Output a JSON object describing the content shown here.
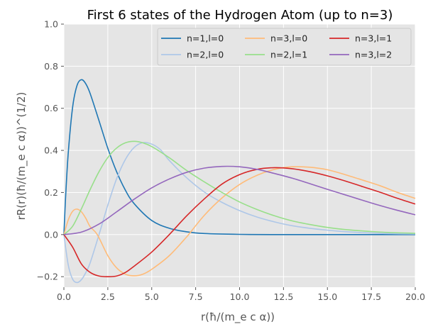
{
  "chart_data": {
    "type": "line",
    "title": "First 6 states of the Hydrogen Atom (up to n=3)",
    "xlabel": "r(ħ/(m_e c α))",
    "ylabel": "rR(r)(ħ/(m_e c α))^(1/2)",
    "xlim": [
      0,
      20
    ],
    "ylim": [
      -0.25,
      1.0
    ],
    "xticks": [
      0.0,
      2.5,
      5.0,
      7.5,
      10.0,
      12.5,
      15.0,
      17.5,
      20.0
    ],
    "xtick_labels": [
      "0.0",
      "2.5",
      "5.0",
      "7.5",
      "10.0",
      "12.5",
      "15.0",
      "17.5",
      "20.0"
    ],
    "yticks": [
      -0.2,
      0.0,
      0.2,
      0.4,
      0.6,
      0.8,
      1.0
    ],
    "ytick_labels": [
      "−0.2",
      "0.0",
      "0.2",
      "0.4",
      "0.6",
      "0.8",
      "1.0"
    ],
    "grid": true,
    "legend_placement": "top-right",
    "legend_columns": 3,
    "series": [
      {
        "name": "n=1,l=0",
        "color": "#1f77b4",
        "x": [
          0,
          0.1,
          0.25,
          0.5,
          0.75,
          1.0,
          1.25,
          1.5,
          2.0,
          2.5,
          3.0,
          3.5,
          4.0,
          5.0,
          6.0,
          7.0,
          8.0,
          10.0,
          12.0,
          15.0,
          20.0
        ],
        "y": [
          0.0,
          0.181,
          0.389,
          0.607,
          0.709,
          0.736,
          0.716,
          0.669,
          0.541,
          0.41,
          0.299,
          0.211,
          0.147,
          0.067,
          0.03,
          0.013,
          0.005,
          0.001,
          0.0,
          0.0,
          0.0
        ]
      },
      {
        "name": "n=2,l=0",
        "color": "#aec7e8",
        "x": [
          0,
          0.25,
          0.5,
          0.75,
          1.0,
          1.25,
          1.5,
          2.0,
          2.5,
          3.0,
          3.5,
          4.0,
          4.5,
          5.0,
          5.5,
          6.0,
          7.0,
          8.0,
          9.0,
          10.0,
          11.0,
          12.0,
          13.0,
          14.0,
          15.0,
          16.0,
          18.0,
          20.0
        ],
        "y": [
          0.0,
          -0.145,
          -0.212,
          -0.228,
          -0.214,
          -0.18,
          -0.133,
          -0.0,
          0.14,
          0.265,
          0.357,
          0.414,
          0.437,
          0.43,
          0.403,
          0.352,
          0.269,
          0.202,
          0.153,
          0.114,
          0.083,
          0.06,
          0.042,
          0.03,
          0.021,
          0.014,
          0.006,
          0.003
        ]
      },
      {
        "name": "n=3,l=0",
        "color": "#ffbb78",
        "x": [
          0,
          0.25,
          0.5,
          0.75,
          1.0,
          1.25,
          1.5,
          1.9,
          2.5,
          3.0,
          3.5,
          4.0,
          4.5,
          5.0,
          6.0,
          7.0,
          7.1,
          8.0,
          9.0,
          10.0,
          11.0,
          12.0,
          13.0,
          14.0,
          15.0,
          16.0,
          17.0,
          18.0,
          19.0,
          20.0
        ],
        "y": [
          0.0,
          0.07,
          0.111,
          0.121,
          0.108,
          0.077,
          0.037,
          -0.0,
          -0.1,
          -0.158,
          -0.188,
          -0.196,
          -0.188,
          -0.165,
          -0.1,
          -0.01,
          0.0,
          0.092,
          0.174,
          0.238,
          0.282,
          0.31,
          0.322,
          0.32,
          0.308,
          0.285,
          0.259,
          0.232,
          0.2,
          0.172
        ]
      },
      {
        "name": "n=2,l=1",
        "color": "#98df8a",
        "x": [
          0,
          0.5,
          1.0,
          1.5,
          2.0,
          2.5,
          3.0,
          3.5,
          4.0,
          4.5,
          5.0,
          6.0,
          7.0,
          8.0,
          9.0,
          10.0,
          11.0,
          12.0,
          13.0,
          14.0,
          15.0,
          16.0,
          18.0,
          20.0
        ],
        "y": [
          0.0,
          0.04,
          0.123,
          0.215,
          0.299,
          0.366,
          0.411,
          0.436,
          0.443,
          0.436,
          0.418,
          0.365,
          0.304,
          0.25,
          0.2,
          0.155,
          0.119,
          0.089,
          0.065,
          0.048,
          0.034,
          0.024,
          0.012,
          0.006
        ]
      },
      {
        "name": "n=3,l=1",
        "color": "#d62728",
        "x": [
          0,
          0.5,
          1.0,
          1.5,
          2.0,
          2.5,
          3.0,
          3.5,
          4.0,
          5.0,
          6.0,
          7.0,
          8.0,
          9.0,
          10.0,
          11.0,
          12.0,
          13.0,
          14.0,
          15.0,
          16.0,
          17.0,
          18.0,
          19.0,
          20.0
        ],
        "y": [
          0.0,
          -0.06,
          -0.14,
          -0.18,
          -0.197,
          -0.2,
          -0.197,
          -0.18,
          -0.15,
          -0.083,
          -0.0,
          0.09,
          0.17,
          0.24,
          0.285,
          0.31,
          0.318,
          0.313,
          0.299,
          0.279,
          0.255,
          0.228,
          0.201,
          0.172,
          0.145
        ]
      },
      {
        "name": "n=3,l=2",
        "color": "#9467bd",
        "x": [
          0,
          1.0,
          2.0,
          3.0,
          4.0,
          5.0,
          6.0,
          7.0,
          8.0,
          9.0,
          10.0,
          11.0,
          12.0,
          13.0,
          14.0,
          15.0,
          16.0,
          17.0,
          18.0,
          19.0,
          20.0
        ],
        "y": [
          0.0,
          0.012,
          0.05,
          0.108,
          0.168,
          0.222,
          0.264,
          0.296,
          0.316,
          0.324,
          0.322,
          0.31,
          0.29,
          0.268,
          0.242,
          0.215,
          0.189,
          0.163,
          0.138,
          0.115,
          0.094
        ]
      }
    ]
  }
}
